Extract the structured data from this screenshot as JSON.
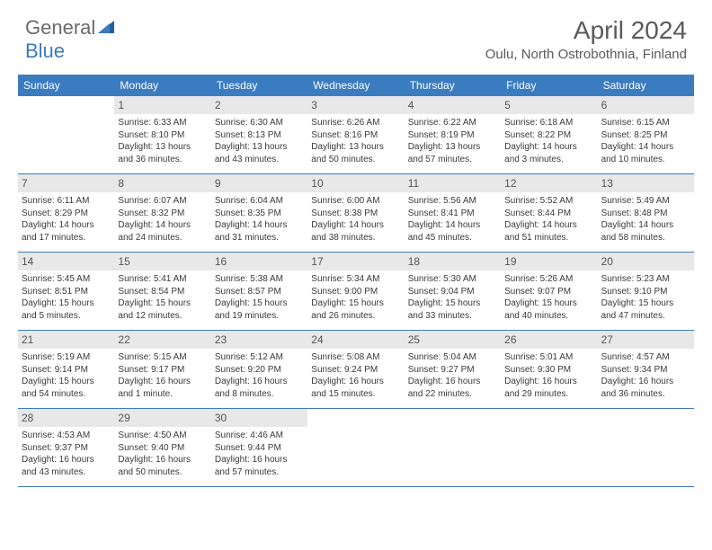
{
  "logo": {
    "general": "General",
    "blue": "Blue"
  },
  "title": "April 2024",
  "location": "Oulu, North Ostrobothnia, Finland",
  "colors": {
    "header_bar": "#3b7bbf",
    "daynum_bg": "#e8e8e8",
    "text_dark": "#3a3a3a",
    "text_muted": "#5a5a5a",
    "logo_gray": "#6a6a6a",
    "logo_blue": "#3b7bbf",
    "white": "#ffffff"
  },
  "typography": {
    "title_fontsize": 28,
    "location_fontsize": 15,
    "dow_fontsize": 12,
    "daynum_fontsize": 12,
    "body_fontsize": 10
  },
  "dow": [
    "Sunday",
    "Monday",
    "Tuesday",
    "Wednesday",
    "Thursday",
    "Friday",
    "Saturday"
  ],
  "weeks": [
    [
      {
        "n": "",
        "sr": "",
        "ss": "",
        "dl": ""
      },
      {
        "n": "1",
        "sr": "Sunrise: 6:33 AM",
        "ss": "Sunset: 8:10 PM",
        "dl": "Daylight: 13 hours and 36 minutes."
      },
      {
        "n": "2",
        "sr": "Sunrise: 6:30 AM",
        "ss": "Sunset: 8:13 PM",
        "dl": "Daylight: 13 hours and 43 minutes."
      },
      {
        "n": "3",
        "sr": "Sunrise: 6:26 AM",
        "ss": "Sunset: 8:16 PM",
        "dl": "Daylight: 13 hours and 50 minutes."
      },
      {
        "n": "4",
        "sr": "Sunrise: 6:22 AM",
        "ss": "Sunset: 8:19 PM",
        "dl": "Daylight: 13 hours and 57 minutes."
      },
      {
        "n": "5",
        "sr": "Sunrise: 6:18 AM",
        "ss": "Sunset: 8:22 PM",
        "dl": "Daylight: 14 hours and 3 minutes."
      },
      {
        "n": "6",
        "sr": "Sunrise: 6:15 AM",
        "ss": "Sunset: 8:25 PM",
        "dl": "Daylight: 14 hours and 10 minutes."
      }
    ],
    [
      {
        "n": "7",
        "sr": "Sunrise: 6:11 AM",
        "ss": "Sunset: 8:29 PM",
        "dl": "Daylight: 14 hours and 17 minutes."
      },
      {
        "n": "8",
        "sr": "Sunrise: 6:07 AM",
        "ss": "Sunset: 8:32 PM",
        "dl": "Daylight: 14 hours and 24 minutes."
      },
      {
        "n": "9",
        "sr": "Sunrise: 6:04 AM",
        "ss": "Sunset: 8:35 PM",
        "dl": "Daylight: 14 hours and 31 minutes."
      },
      {
        "n": "10",
        "sr": "Sunrise: 6:00 AM",
        "ss": "Sunset: 8:38 PM",
        "dl": "Daylight: 14 hours and 38 minutes."
      },
      {
        "n": "11",
        "sr": "Sunrise: 5:56 AM",
        "ss": "Sunset: 8:41 PM",
        "dl": "Daylight: 14 hours and 45 minutes."
      },
      {
        "n": "12",
        "sr": "Sunrise: 5:52 AM",
        "ss": "Sunset: 8:44 PM",
        "dl": "Daylight: 14 hours and 51 minutes."
      },
      {
        "n": "13",
        "sr": "Sunrise: 5:49 AM",
        "ss": "Sunset: 8:48 PM",
        "dl": "Daylight: 14 hours and 58 minutes."
      }
    ],
    [
      {
        "n": "14",
        "sr": "Sunrise: 5:45 AM",
        "ss": "Sunset: 8:51 PM",
        "dl": "Daylight: 15 hours and 5 minutes."
      },
      {
        "n": "15",
        "sr": "Sunrise: 5:41 AM",
        "ss": "Sunset: 8:54 PM",
        "dl": "Daylight: 15 hours and 12 minutes."
      },
      {
        "n": "16",
        "sr": "Sunrise: 5:38 AM",
        "ss": "Sunset: 8:57 PM",
        "dl": "Daylight: 15 hours and 19 minutes."
      },
      {
        "n": "17",
        "sr": "Sunrise: 5:34 AM",
        "ss": "Sunset: 9:00 PM",
        "dl": "Daylight: 15 hours and 26 minutes."
      },
      {
        "n": "18",
        "sr": "Sunrise: 5:30 AM",
        "ss": "Sunset: 9:04 PM",
        "dl": "Daylight: 15 hours and 33 minutes."
      },
      {
        "n": "19",
        "sr": "Sunrise: 5:26 AM",
        "ss": "Sunset: 9:07 PM",
        "dl": "Daylight: 15 hours and 40 minutes."
      },
      {
        "n": "20",
        "sr": "Sunrise: 5:23 AM",
        "ss": "Sunset: 9:10 PM",
        "dl": "Daylight: 15 hours and 47 minutes."
      }
    ],
    [
      {
        "n": "21",
        "sr": "Sunrise: 5:19 AM",
        "ss": "Sunset: 9:14 PM",
        "dl": "Daylight: 15 hours and 54 minutes."
      },
      {
        "n": "22",
        "sr": "Sunrise: 5:15 AM",
        "ss": "Sunset: 9:17 PM",
        "dl": "Daylight: 16 hours and 1 minute."
      },
      {
        "n": "23",
        "sr": "Sunrise: 5:12 AM",
        "ss": "Sunset: 9:20 PM",
        "dl": "Daylight: 16 hours and 8 minutes."
      },
      {
        "n": "24",
        "sr": "Sunrise: 5:08 AM",
        "ss": "Sunset: 9:24 PM",
        "dl": "Daylight: 16 hours and 15 minutes."
      },
      {
        "n": "25",
        "sr": "Sunrise: 5:04 AM",
        "ss": "Sunset: 9:27 PM",
        "dl": "Daylight: 16 hours and 22 minutes."
      },
      {
        "n": "26",
        "sr": "Sunrise: 5:01 AM",
        "ss": "Sunset: 9:30 PM",
        "dl": "Daylight: 16 hours and 29 minutes."
      },
      {
        "n": "27",
        "sr": "Sunrise: 4:57 AM",
        "ss": "Sunset: 9:34 PM",
        "dl": "Daylight: 16 hours and 36 minutes."
      }
    ],
    [
      {
        "n": "28",
        "sr": "Sunrise: 4:53 AM",
        "ss": "Sunset: 9:37 PM",
        "dl": "Daylight: 16 hours and 43 minutes."
      },
      {
        "n": "29",
        "sr": "Sunrise: 4:50 AM",
        "ss": "Sunset: 9:40 PM",
        "dl": "Daylight: 16 hours and 50 minutes."
      },
      {
        "n": "30",
        "sr": "Sunrise: 4:46 AM",
        "ss": "Sunset: 9:44 PM",
        "dl": "Daylight: 16 hours and 57 minutes."
      },
      {
        "n": "",
        "sr": "",
        "ss": "",
        "dl": ""
      },
      {
        "n": "",
        "sr": "",
        "ss": "",
        "dl": ""
      },
      {
        "n": "",
        "sr": "",
        "ss": "",
        "dl": ""
      },
      {
        "n": "",
        "sr": "",
        "ss": "",
        "dl": ""
      }
    ]
  ]
}
